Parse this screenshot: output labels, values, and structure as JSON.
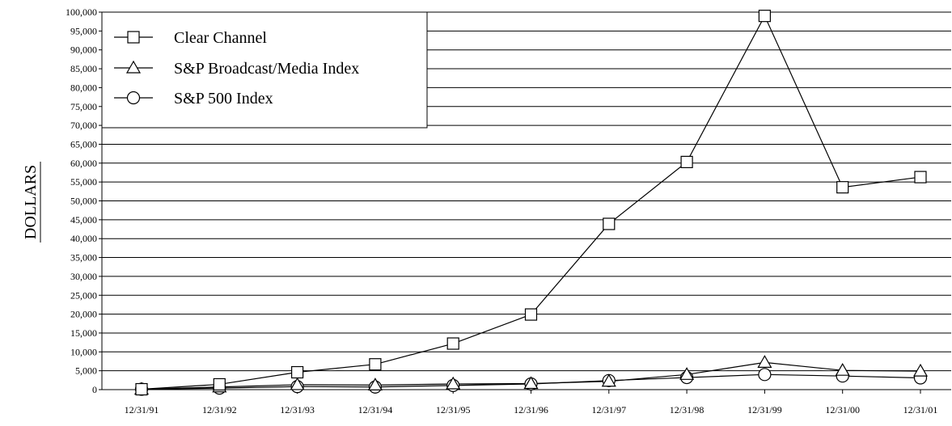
{
  "chart_data": {
    "type": "line",
    "ylabel": "DOLLARS",
    "xlabel": "",
    "categories": [
      "12/31/91",
      "12/31/92",
      "12/31/93",
      "12/31/94",
      "12/31/95",
      "12/31/96",
      "12/31/97",
      "12/31/98",
      "12/31/99",
      "12/31/00",
      "12/31/01"
    ],
    "ylim": [
      0,
      100000
    ],
    "ytick_step": 5000,
    "ytick_labels": [
      "0",
      "5,000",
      "10,000",
      "15,000",
      "20,000",
      "25,000",
      "30,000",
      "35,000",
      "40,000",
      "45,000",
      "50,000",
      "55,000",
      "60,000",
      "65,000",
      "70,000",
      "75,000",
      "80,000",
      "85,000",
      "90,000",
      "95,000",
      "100,000"
    ],
    "grid": "horizontal",
    "legend_position": "top-left",
    "series": [
      {
        "name": "Clear Channel",
        "marker": "square",
        "values": [
          100,
          1400,
          4600,
          6700,
          12200,
          19900,
          43900,
          60300,
          99000,
          53600,
          56300
        ]
      },
      {
        "name": "S&P Broadcast/Media Index",
        "marker": "triangle",
        "values": [
          100,
          700,
          1300,
          1200,
          1500,
          1600,
          2200,
          4000,
          7200,
          5100,
          4900
        ]
      },
      {
        "name": "S&P 500 Index",
        "marker": "circle",
        "values": [
          100,
          400,
          800,
          700,
          1100,
          1500,
          2400,
          3200,
          4000,
          3600,
          3100
        ]
      }
    ]
  }
}
